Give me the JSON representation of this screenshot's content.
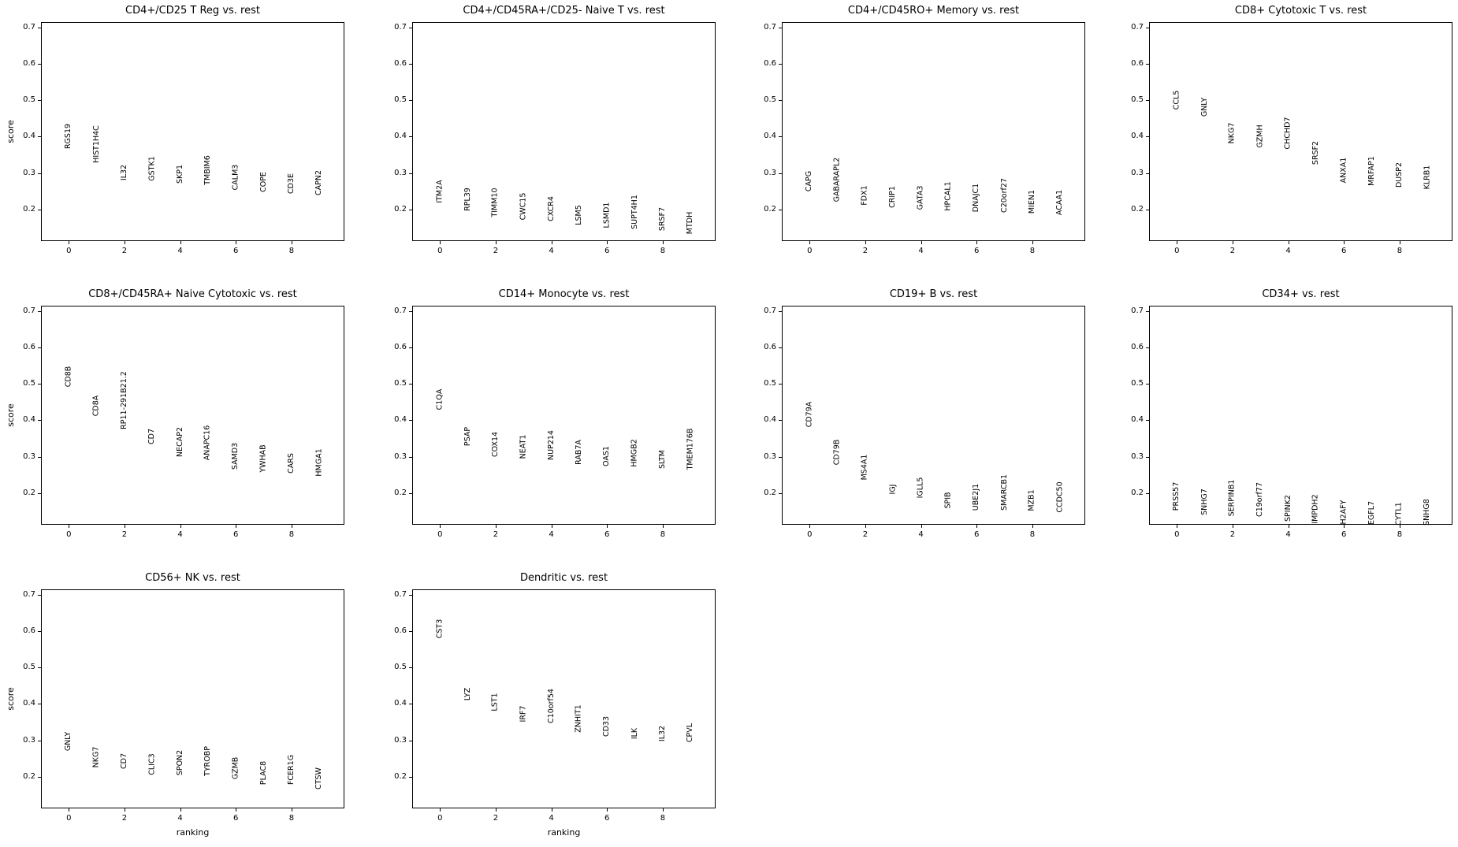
{
  "figure": {
    "background_color": "#ffffff",
    "text_color": "#000000",
    "axis_color": "#000000"
  },
  "axis_config": {
    "xlabel": "ranking",
    "ylabel": "score",
    "xlim": [
      -1.0,
      9.9
    ],
    "ylim": [
      0.113,
      0.715
    ],
    "xticks": [
      0,
      2,
      4,
      6,
      8
    ],
    "xtick_labels": [
      "0",
      "2",
      "4",
      "6",
      "8"
    ],
    "yticks": [
      0.2,
      0.3,
      0.4,
      0.5,
      0.6,
      0.7
    ],
    "ytick_labels": [
      "0.2",
      "0.3",
      "0.4",
      "0.5",
      "0.6",
      "0.7"
    ],
    "grid": false,
    "marker": "gene-name-text-rotated-90"
  },
  "chart_data": [
    {
      "type": "scatter",
      "title": "CD4+/CD25 T Reg vs. rest",
      "x": [
        0,
        1,
        2,
        3,
        4,
        5,
        6,
        7,
        8,
        9
      ],
      "y": [
        0.366,
        0.327,
        0.28,
        0.279,
        0.272,
        0.266,
        0.252,
        0.248,
        0.243,
        0.239
      ],
      "point_labels": [
        "RGS19",
        "HIST1H4C",
        "IL32",
        "GSTK1",
        "SKP1",
        "TMBIM6",
        "CALM3",
        "COPE",
        "CD3E",
        "CAPN2"
      ],
      "show_ylabel": true,
      "show_xlabel": false
    },
    {
      "type": "scatter",
      "title": "CD4+/CD45RA+/CD25- Naive T vs. rest",
      "x": [
        0,
        1,
        2,
        3,
        4,
        5,
        6,
        7,
        8,
        9
      ],
      "y": [
        0.218,
        0.196,
        0.179,
        0.171,
        0.168,
        0.157,
        0.149,
        0.146,
        0.142,
        0.132
      ],
      "point_labels": [
        "ITM2A",
        "RPL39",
        "TIMM10",
        "CWC15",
        "CXCR4",
        "LSM5",
        "LSMD1",
        "SUPT4H1",
        "SRSF7",
        "MTDH"
      ],
      "show_ylabel": false,
      "show_xlabel": false
    },
    {
      "type": "scatter",
      "title": "CD4+/CD45RO+ Memory vs. rest",
      "x": [
        0,
        1,
        2,
        3,
        4,
        5,
        6,
        7,
        8,
        9
      ],
      "y": [
        0.25,
        0.22,
        0.212,
        0.203,
        0.199,
        0.196,
        0.193,
        0.192,
        0.188,
        0.185
      ],
      "point_labels": [
        "CAPG",
        "GABARAPL2",
        "FDX1",
        "CRIP1",
        "GATA3",
        "HPCAL1",
        "DNAJC1",
        "C20orf27",
        "MIEN1",
        "ACAA1"
      ],
      "show_ylabel": false,
      "show_xlabel": false
    },
    {
      "type": "scatter",
      "title": "CD8+ Cytotoxic T vs. rest",
      "x": [
        0,
        1,
        2,
        3,
        4,
        5,
        6,
        7,
        8,
        9
      ],
      "y": [
        0.473,
        0.455,
        0.38,
        0.369,
        0.365,
        0.322,
        0.272,
        0.265,
        0.261,
        0.254
      ],
      "point_labels": [
        "CCL5",
        "GNLY",
        "NKG7",
        "GZMH",
        "CHCHD7",
        "SRSF2",
        "ANXA1",
        "MRFAP1",
        "DUSP2",
        "KLRB1"
      ],
      "show_ylabel": false,
      "show_xlabel": false
    },
    {
      "type": "scatter",
      "title": "CD8+/CD45RA+ Naive Cytotoxic vs. rest",
      "x": [
        0,
        1,
        2,
        3,
        4,
        5,
        6,
        7,
        8,
        9
      ],
      "y": [
        0.49,
        0.41,
        0.376,
        0.333,
        0.3,
        0.29,
        0.265,
        0.257,
        0.254,
        0.247
      ],
      "point_labels": [
        "CD8B",
        "CD8A",
        "RP11-291B21.2",
        "CD7",
        "NECAP2",
        "ANAPC16",
        "SAMD3",
        "YWHAB",
        "CARS",
        "HMGA1"
      ],
      "show_ylabel": true,
      "show_xlabel": false
    },
    {
      "type": "scatter",
      "title": "CD14+ Monocyte vs. rest",
      "x": [
        0,
        1,
        2,
        3,
        4,
        5,
        6,
        7,
        8,
        9
      ],
      "y": [
        0.427,
        0.33,
        0.3,
        0.294,
        0.29,
        0.277,
        0.274,
        0.272,
        0.266,
        0.264
      ],
      "point_labels": [
        "C1QA",
        "PSAP",
        "COX14",
        "NEAT1",
        "NUP214",
        "RAB7A",
        "OAS1",
        "HMGB2",
        "SLTM",
        "TMEM176B"
      ],
      "show_ylabel": false,
      "show_xlabel": false
    },
    {
      "type": "scatter",
      "title": "CD19+ B vs. rest",
      "x": [
        0,
        1,
        2,
        3,
        4,
        5,
        6,
        7,
        8,
        9
      ],
      "y": [
        0.38,
        0.276,
        0.236,
        0.196,
        0.186,
        0.157,
        0.153,
        0.152,
        0.15,
        0.146
      ],
      "point_labels": [
        "CD79A",
        "CD79B",
        "MS4A1",
        "IGJ",
        "IGLL5",
        "SPIB",
        "UBE2J1",
        "SMARCB1",
        "MZB1",
        "CCDC50"
      ],
      "show_ylabel": false,
      "show_xlabel": false
    },
    {
      "type": "scatter",
      "title": "CD34+ vs. rest",
      "x": [
        0,
        1,
        2,
        3,
        4,
        5,
        6,
        7,
        8,
        9
      ],
      "y": [
        0.153,
        0.139,
        0.135,
        0.134,
        0.121,
        0.117,
        0.115,
        0.114,
        0.111,
        0.11
      ],
      "point_labels": [
        "PRSS57",
        "SNHG7",
        "SERPINB1",
        "C19orf77",
        "SPINK2",
        "IMPDH2",
        "H2AFY",
        "EGFL7",
        "CYTL1",
        "SNHG8"
      ],
      "show_ylabel": false,
      "show_xlabel": false
    },
    {
      "type": "scatter",
      "title": "CD56+ NK vs. rest",
      "x": [
        0,
        1,
        2,
        3,
        4,
        5,
        6,
        7,
        8,
        9
      ],
      "y": [
        0.272,
        0.225,
        0.222,
        0.206,
        0.205,
        0.202,
        0.193,
        0.178,
        0.177,
        0.164
      ],
      "point_labels": [
        "GNLY",
        "NKG7",
        "CD7",
        "CLIC3",
        "SPON2",
        "TYROBP",
        "GZMB",
        "PLAC8",
        "FCER1G",
        "CTSW"
      ],
      "show_ylabel": true,
      "show_xlabel": true
    },
    {
      "type": "scatter",
      "title": "Dendritic vs. rest",
      "x": [
        0,
        1,
        2,
        3,
        4,
        5,
        6,
        7,
        8,
        9
      ],
      "y": [
        0.58,
        0.41,
        0.38,
        0.35,
        0.347,
        0.322,
        0.31,
        0.303,
        0.296,
        0.295
      ],
      "point_labels": [
        "CST3",
        "LYZ",
        "LST1",
        "IRF7",
        "C10orf54",
        "ZNHIT1",
        "CD33",
        "ILK",
        "IL32",
        "CPVL"
      ],
      "show_ylabel": false,
      "show_xlabel": true
    }
  ]
}
